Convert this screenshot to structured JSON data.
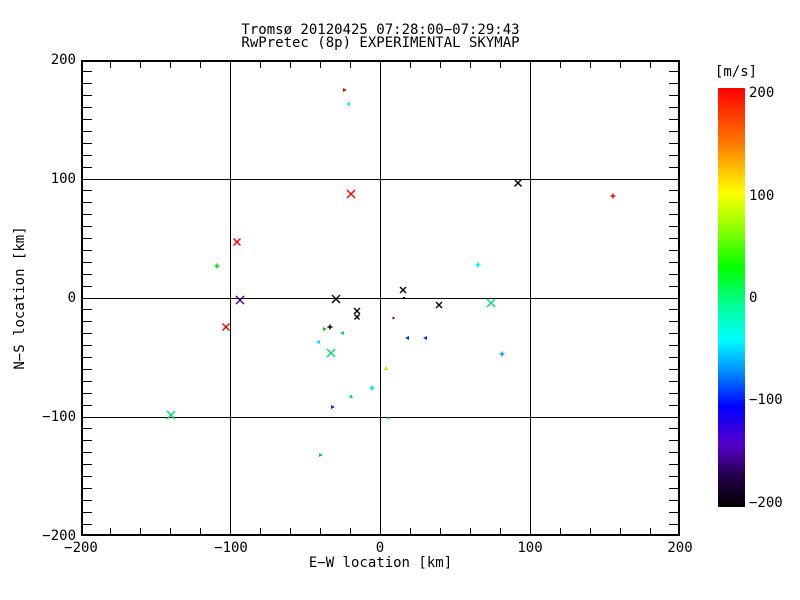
{
  "title": {
    "line1": "Tromsø 20120425 07:28:00−07:29:43",
    "line2": "RwPretec (8p) EXPERIMENTAL SKYMAP"
  },
  "axes": {
    "xlabel": "E−W location [km]",
    "ylabel": "N−S location [km]",
    "xtick_labels": [
      "−200",
      "−100",
      "0",
      "100",
      "200"
    ],
    "ytick_labels": [
      "200",
      "100",
      "0",
      "−100",
      "−200"
    ]
  },
  "colorbar": {
    "title": "[m/s]",
    "tick_labels": [
      "200",
      "100",
      "0",
      "−100",
      "−200"
    ],
    "range": [
      -200,
      200
    ],
    "gradient_stops": [
      {
        "at": 0,
        "color": "#ff0000"
      },
      {
        "at": 13,
        "color": "#ff7700"
      },
      {
        "at": 25,
        "color": "#ffff00"
      },
      {
        "at": 34,
        "color": "#88ff00"
      },
      {
        "at": 43,
        "color": "#00ff00"
      },
      {
        "at": 52,
        "color": "#00ff99"
      },
      {
        "at": 60,
        "color": "#00ffff"
      },
      {
        "at": 68,
        "color": "#0088ff"
      },
      {
        "at": 76,
        "color": "#0000ff"
      },
      {
        "at": 85,
        "color": "#5500cc"
      },
      {
        "at": 93,
        "color": "#220044"
      },
      {
        "at": 100,
        "color": "#000000"
      }
    ]
  },
  "chart_data": {
    "type": "scatter",
    "title": "Tromsø 20120425 07:28:00−07:29:43 / RwPretec (8p) EXPERIMENTAL SKYMAP",
    "xlabel": "E−W location [km]",
    "ylabel": "N−S location [km]",
    "xlim": [
      -200,
      200
    ],
    "ylim": [
      -200,
      200
    ],
    "xticks": [
      -200,
      -100,
      0,
      100,
      200
    ],
    "yticks": [
      -200,
      -100,
      0,
      100,
      200
    ],
    "grid": true,
    "colorbar_units": "m/s",
    "colorbar_range": [
      -200,
      200
    ],
    "points": [
      {
        "x": -24,
        "y": 175,
        "v_mps": 195,
        "color": "#ff0000",
        "marker": "tri-right",
        "size": 4
      },
      {
        "x": -22,
        "y": 163,
        "v_mps": -45,
        "color": "#00e5ff",
        "marker": "tri-left",
        "size": 4
      },
      {
        "x": -20,
        "y": 87,
        "v_mps": 195,
        "color": "#ff0000",
        "marker": "x",
        "size": 8
      },
      {
        "x": 92,
        "y": 97,
        "v_mps": -200,
        "color": "#000000",
        "marker": "x",
        "size": 7
      },
      {
        "x": 155,
        "y": 86,
        "v_mps": 195,
        "color": "#ee0000",
        "marker": "plus",
        "size": 5
      },
      {
        "x": -96,
        "y": 47,
        "v_mps": 195,
        "color": "#ff0000",
        "marker": "x",
        "size": 7
      },
      {
        "x": -109,
        "y": 27,
        "v_mps": 55,
        "color": "#00dd00",
        "marker": "plus",
        "size": 5
      },
      {
        "x": -94,
        "y": -2,
        "v_mps": -160,
        "color": "#4b0096",
        "marker": "x",
        "size": 8
      },
      {
        "x": -30,
        "y": -1,
        "v_mps": -200,
        "color": "#000000",
        "marker": "x",
        "size": 8
      },
      {
        "x": 65,
        "y": 28,
        "v_mps": -45,
        "color": "#00e5ff",
        "marker": "plus",
        "size": 5
      },
      {
        "x": 15,
        "y": 7,
        "v_mps": -200,
        "color": "#000000",
        "marker": "x",
        "size": 6
      },
      {
        "x": 16,
        "y": 0,
        "v_mps": -200,
        "color": "#000000",
        "marker": "dot",
        "size": 2
      },
      {
        "x": 39,
        "y": -6,
        "v_mps": -200,
        "color": "#000000",
        "marker": "x",
        "size": 6
      },
      {
        "x": 74,
        "y": -4,
        "v_mps": 20,
        "color": "#00e060",
        "marker": "x",
        "size": 8
      },
      {
        "x": -16,
        "y": -11,
        "v_mps": -200,
        "color": "#000000",
        "marker": "x",
        "size": 6
      },
      {
        "x": -16,
        "y": -16,
        "v_mps": -200,
        "color": "#000000",
        "marker": "x",
        "size": 5
      },
      {
        "x": -103,
        "y": -24,
        "v_mps": 195,
        "color": "#ee0000",
        "marker": "x",
        "size": 7
      },
      {
        "x": 9,
        "y": -17,
        "v_mps": 200,
        "color": "#880000",
        "marker": "tri-right",
        "size": 3
      },
      {
        "x": -34,
        "y": -24,
        "v_mps": -200,
        "color": "#000000",
        "marker": "plus",
        "size": 5
      },
      {
        "x": -37,
        "y": -26,
        "v_mps": 50,
        "color": "#00cc00",
        "marker": "tri-right",
        "size": 4
      },
      {
        "x": -26,
        "y": -29,
        "v_mps": 15,
        "color": "#00e070",
        "marker": "tri-left",
        "size": 4
      },
      {
        "x": -42,
        "y": -37,
        "v_mps": -45,
        "color": "#00e5ff",
        "marker": "tri-left",
        "size": 4
      },
      {
        "x": 18,
        "y": -34,
        "v_mps": -95,
        "color": "#0033dd",
        "marker": "tri-left",
        "size": 4
      },
      {
        "x": 30,
        "y": -34,
        "v_mps": -95,
        "color": "#0033dd",
        "marker": "tri-left",
        "size": 4
      },
      {
        "x": -33,
        "y": -46,
        "v_mps": 15,
        "color": "#00e060",
        "marker": "x",
        "size": 8
      },
      {
        "x": 81,
        "y": -47,
        "v_mps": -70,
        "color": "#0099ff",
        "marker": "plus",
        "size": 5
      },
      {
        "x": 4,
        "y": -59,
        "v_mps": 85,
        "color": "#aaee00",
        "marker": "tri-up",
        "size": 4
      },
      {
        "x": -6,
        "y": -76,
        "v_mps": -45,
        "color": "#00d5ff",
        "marker": "plus",
        "size": 5
      },
      {
        "x": -20,
        "y": -82,
        "v_mps": 15,
        "color": "#00e070",
        "marker": "tri-up",
        "size": 4
      },
      {
        "x": -32,
        "y": -92,
        "v_mps": -95,
        "color": "#0033dd",
        "marker": "tri-right",
        "size": 4
      },
      {
        "x": -140,
        "y": -98,
        "v_mps": 20,
        "color": "#00e060",
        "marker": "x",
        "size": 8
      },
      {
        "x": 6,
        "y": -101,
        "v_mps": 35,
        "color": "#00cc44",
        "marker": "tri-right",
        "size": 3
      },
      {
        "x": -40,
        "y": -132,
        "v_mps": -60,
        "color": "#00aaff",
        "marker": "tri-right",
        "size": 4
      }
    ]
  }
}
